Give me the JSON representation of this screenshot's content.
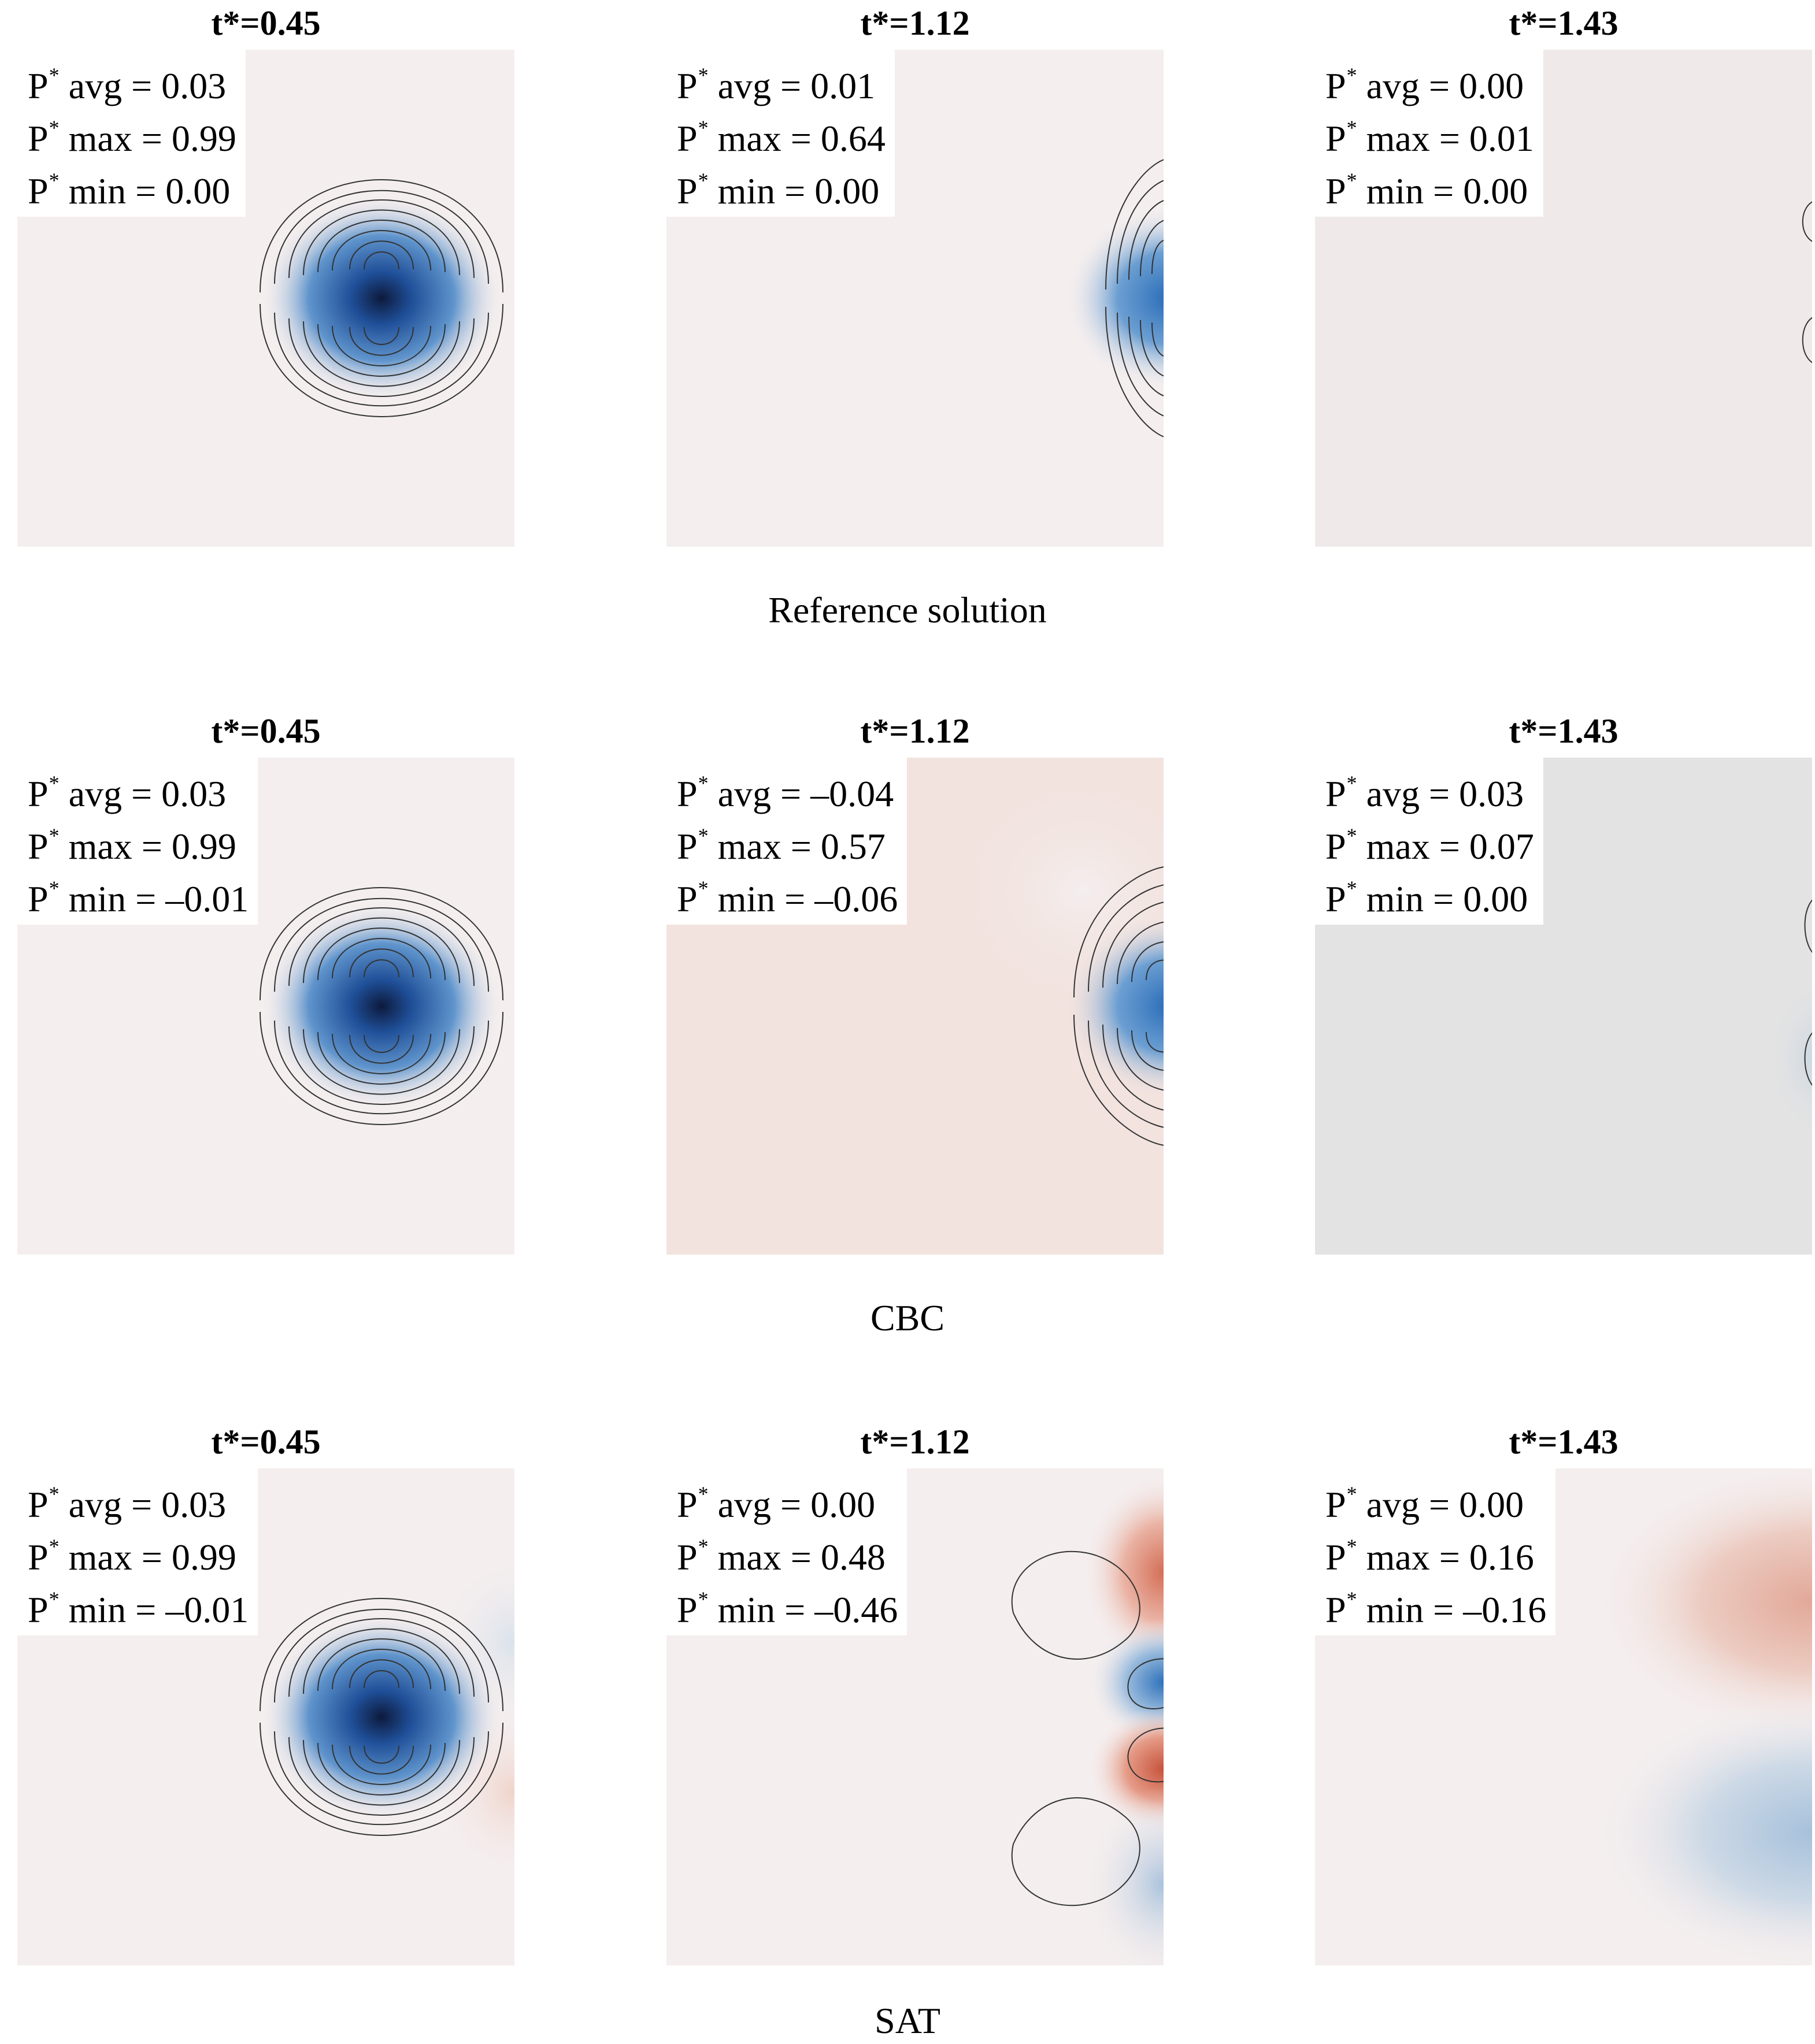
{
  "rows": [
    {
      "caption": "Reference solution",
      "panels": [
        {
          "time_label": "t*=0.45",
          "symbol": "P",
          "superscript": "*",
          "stats": [
            {
              "label": "avg =",
              "value": "0.03"
            },
            {
              "label": "max =",
              "value": "0.99"
            },
            {
              "label": "min =",
              "value": "0.00"
            }
          ]
        },
        {
          "time_label": "t*=1.12",
          "symbol": "P",
          "superscript": "*",
          "stats": [
            {
              "label": "avg =",
              "value": "0.01"
            },
            {
              "label": "max =",
              "value": "0.64"
            },
            {
              "label": "min =",
              "value": "0.00"
            }
          ]
        },
        {
          "time_label": "t*=1.43",
          "symbol": "P",
          "superscript": "*",
          "stats": [
            {
              "label": "avg =",
              "value": "0.00"
            },
            {
              "label": "max =",
              "value": "0.01"
            },
            {
              "label": "min =",
              "value": "0.00"
            }
          ]
        }
      ]
    },
    {
      "caption": "CBC",
      "panels": [
        {
          "time_label": "t*=0.45",
          "symbol": "P",
          "superscript": "*",
          "stats": [
            {
              "label": "avg =",
              "value": "0.03"
            },
            {
              "label": "max =",
              "value": "0.99"
            },
            {
              "label": "min =",
              "value": "–0.01"
            }
          ]
        },
        {
          "time_label": "t*=1.12",
          "symbol": "P",
          "superscript": "*",
          "stats": [
            {
              "label": "avg =",
              "value": "–0.04"
            },
            {
              "label": "max =",
              "value": "0.57"
            },
            {
              "label": "min =",
              "value": "–0.06"
            }
          ]
        },
        {
          "time_label": "t*=1.43",
          "symbol": "P",
          "superscript": "*",
          "stats": [
            {
              "label": "avg =",
              "value": "0.03"
            },
            {
              "label": "max =",
              "value": "0.07"
            },
            {
              "label": "min =",
              "value": "0.00"
            }
          ]
        }
      ]
    },
    {
      "caption": "SAT",
      "panels": [
        {
          "time_label": "t*=0.45",
          "symbol": "P",
          "superscript": "*",
          "stats": [
            {
              "label": "avg =",
              "value": "0.03"
            },
            {
              "label": "max =",
              "value": "0.99"
            },
            {
              "label": "min =",
              "value": "–0.01"
            }
          ]
        },
        {
          "time_label": "t*=1.12",
          "symbol": "P",
          "superscript": "*",
          "stats": [
            {
              "label": "avg =",
              "value": "0.00"
            },
            {
              "label": "max =",
              "value": "0.48"
            },
            {
              "label": "min =",
              "value": "–0.46"
            }
          ]
        },
        {
          "time_label": "t*=1.43",
          "symbol": "P",
          "superscript": "*",
          "stats": [
            {
              "label": "avg =",
              "value": "0.00"
            },
            {
              "label": "max =",
              "value": "0.16"
            },
            {
              "label": "min =",
              "value": "–0.16"
            }
          ]
        }
      ]
    }
  ],
  "colors": {
    "background_neutral": "#f4eeee",
    "background_cbc_mid": "#f2e3df",
    "background_cbc_late": "#e3e3e3",
    "positive_blue": "#2a6cb8",
    "peak_blue": "#0d1a3c",
    "negative_red": "#c7533c",
    "contour_line": "#333333"
  }
}
